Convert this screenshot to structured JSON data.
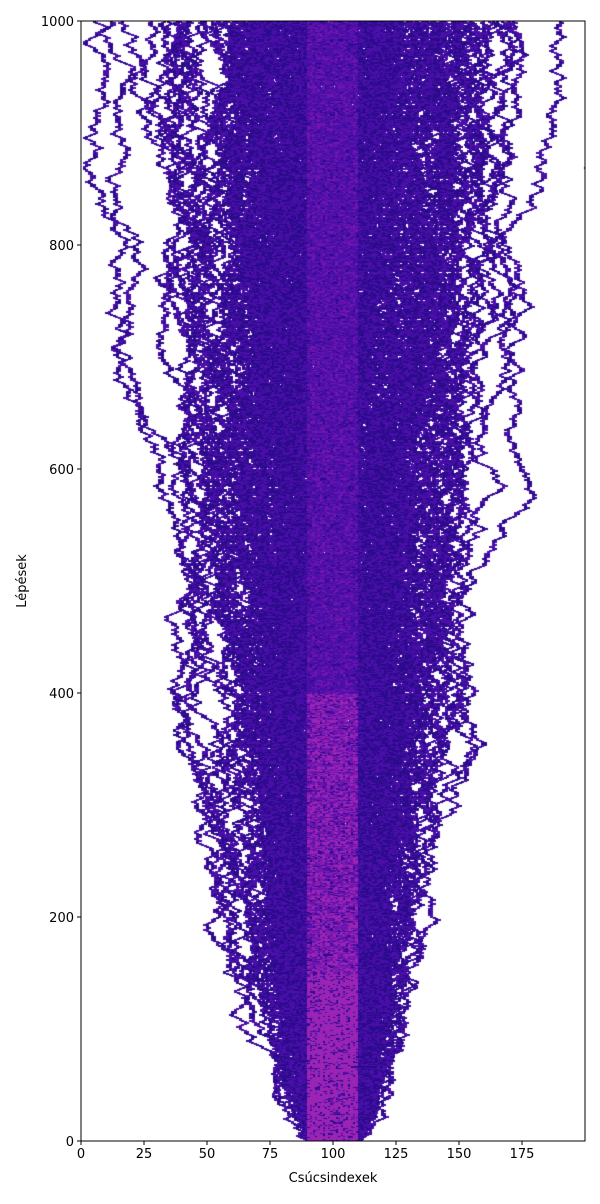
{
  "chart_data": {
    "type": "heatmap",
    "title": "",
    "xlabel": "Csúcsindexek",
    "ylabel": "Lépések",
    "xlim": [
      0,
      200
    ],
    "ylim": [
      0,
      1000
    ],
    "xticks": [
      0,
      25,
      50,
      75,
      100,
      125,
      150,
      175
    ],
    "yticks": [
      0,
      200,
      400,
      600,
      800,
      1000
    ],
    "colormap": [
      "#ffffff",
      "#2b0a8c",
      "#4a0fa8",
      "#6f15b0",
      "#9b24b4"
    ],
    "initial_band": [
      90,
      110
    ],
    "grid": false
  }
}
